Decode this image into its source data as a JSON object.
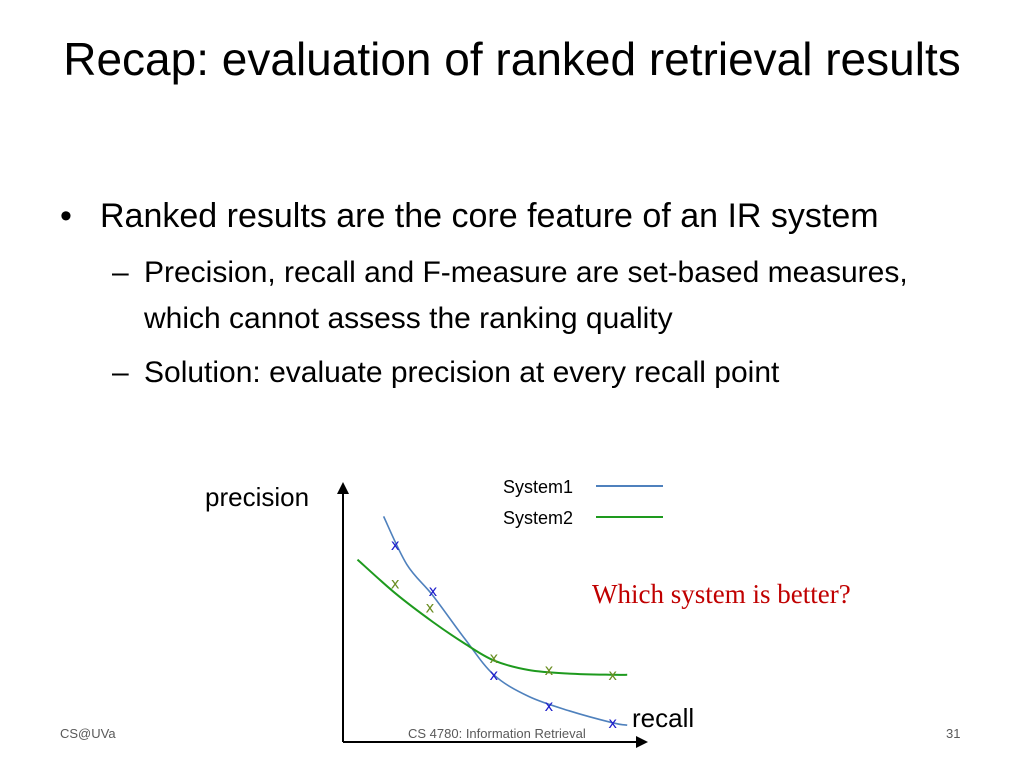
{
  "slide": {
    "title": "Recap: evaluation of ranked retrieval results",
    "bullets": [
      {
        "text": "Ranked results are the core feature of an IR system"
      }
    ],
    "sub_bullets": [
      {
        "text": "Precision, recall and F-measure are set-based measures, which cannot assess the ranking quality"
      },
      {
        "text": "Solution: evaluate precision at every recall point"
      }
    ],
    "question": "Which system is better?",
    "footer": {
      "left": "CS@UVa",
      "center": "CS 4780: Information Retrieval",
      "page": "31"
    }
  },
  "chart_data": {
    "type": "line",
    "xlabel": "recall",
    "ylabel": "precision",
    "series": [
      {
        "name": "System1",
        "color": "#4f81bd",
        "marker_color": "#1f1fcc",
        "marker_x": [
          0.18,
          0.31,
          0.52,
          0.71,
          0.93
        ],
        "marker_y": [
          0.82,
          0.63,
          0.28,
          0.15,
          0.08
        ]
      },
      {
        "name": "System2",
        "color": "#1e9a1e",
        "marker_color": "#6b8e23",
        "marker_x": [
          0.18,
          0.3,
          0.52,
          0.71,
          0.93
        ],
        "marker_y": [
          0.66,
          0.56,
          0.35,
          0.3,
          0.28
        ]
      }
    ],
    "markers": "x"
  }
}
